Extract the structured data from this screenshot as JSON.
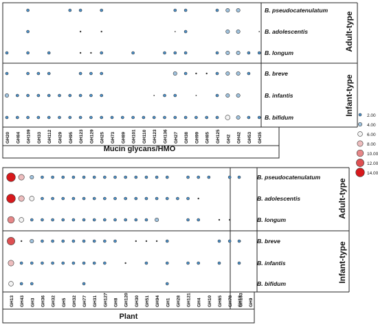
{
  "chart_data": [
    {
      "type": "bubble",
      "xlabel": "Mucin glycans/HMO",
      "categories": [
        "GH20",
        "GH84",
        "GH109",
        "GH33",
        "GH112",
        "GH29",
        "GH95",
        "GH123",
        "GH129",
        "GH25",
        "GH73",
        "GH89",
        "GH101",
        "GH110",
        "GH123",
        "GH136",
        "GH27",
        "GH38",
        "GH99",
        "GH85",
        "GH125",
        "GH2",
        "GH42",
        "GH53",
        "GH35"
      ],
      "groups": [
        {
          "label": "Adult-type",
          "rows": [
            {
              "name": "B. pseudocatenulatum",
              "values": [
                0,
                0,
                2,
                0,
                0,
                0,
                2,
                2,
                0,
                2,
                0,
                0,
                0,
                0,
                0,
                0,
                2,
                2,
                0,
                0,
                2,
                4,
                4,
                0,
                0
              ]
            },
            {
              "name": "B. adolescentis",
              "values": [
                0,
                0,
                2,
                0,
                0,
                0,
                0,
                1,
                0,
                1,
                0,
                0,
                0,
                0,
                0,
                0,
                0.5,
                2,
                0,
                0,
                0,
                4,
                4,
                0,
                0.5
              ]
            },
            {
              "name": "B. longum",
              "values": [
                2,
                0,
                2,
                0,
                2,
                0,
                0,
                1,
                1,
                2,
                0,
                0,
                2,
                0,
                0,
                2,
                2,
                2,
                0,
                0,
                2,
                4,
                4,
                2,
                2
              ]
            }
          ]
        },
        {
          "label": "Infant-type",
          "rows": [
            {
              "name": "B. breve",
              "values": [
                2,
                0,
                2,
                2,
                2,
                0,
                0,
                2,
                2,
                2,
                0,
                0,
                0,
                0,
                0,
                0,
                4,
                2,
                1,
                1,
                2,
                4,
                4,
                2,
                0
              ]
            },
            {
              "name": "B. infantis",
              "values": [
                4,
                2,
                2,
                2,
                2,
                2,
                2,
                2,
                2,
                2,
                0,
                0,
                0,
                0,
                0.5,
                2,
                2,
                0,
                0.5,
                0,
                2,
                4,
                4,
                0,
                0
              ]
            },
            {
              "name": "B. bifidum",
              "values": [
                2,
                2,
                2,
                2,
                2,
                2,
                2,
                2,
                2,
                2,
                2,
                2,
                2,
                2,
                2,
                2,
                2,
                2,
                2,
                2,
                2,
                6,
                4,
                2,
                2
              ]
            }
          ]
        }
      ]
    },
    {
      "type": "bubble",
      "xlabel": "Plant",
      "categories": [
        "GH13",
        "GH43",
        "GH3",
        "GH36",
        "GH32",
        "GH5",
        "GH32",
        "GH77",
        "GH31",
        "GH127",
        "GH8",
        "GH120",
        "GH30",
        "GH51",
        "GH94",
        "GH1",
        "GH28",
        "GH121",
        "GH4",
        "GH10",
        "GH65",
        "GH78",
        "GH133",
        "GH18",
        "GH9"
      ],
      "groups": [
        {
          "label": "Adult-type",
          "rows": [
            {
              "name": "B. pseudocatenulatum",
              "values": [
                14,
                8,
                4,
                2,
                2,
                2,
                2,
                2,
                2,
                2,
                2,
                2,
                2,
                2,
                2,
                2,
                0,
                2,
                2,
                2,
                0,
                2,
                0,
                2,
                0
              ]
            },
            {
              "name": "B. adolescentis",
              "values": [
                14,
                8,
                6,
                2,
                2,
                2,
                2,
                2,
                2,
                2,
                2,
                2,
                2,
                2,
                2,
                2,
                2,
                2,
                1,
                0,
                0,
                0,
                0,
                0,
                0
              ]
            },
            {
              "name": "B. longum",
              "values": [
                10,
                6,
                2,
                2,
                2,
                2,
                2,
                2,
                2,
                2,
                2,
                2,
                2,
                2,
                4,
                0,
                0,
                2,
                2,
                0,
                1,
                1,
                0,
                0,
                0
              ]
            }
          ]
        },
        {
          "label": "Infant-type",
          "rows": [
            {
              "name": "B. breve",
              "values": [
                12,
                1,
                4,
                2,
                2,
                2,
                2,
                2,
                2,
                2,
                2,
                0,
                1,
                1,
                1,
                2,
                0,
                0,
                0,
                0,
                2,
                2,
                1,
                2,
                0
              ]
            },
            {
              "name": "B. infantis",
              "values": [
                8,
                2,
                2,
                2,
                2,
                2,
                2,
                2,
                2,
                2,
                0,
                1,
                0,
                2,
                0,
                2,
                0,
                2,
                2,
                0,
                2,
                0,
                0,
                2,
                0
              ]
            },
            {
              "name": "B. bifidum",
              "values": [
                6,
                2,
                2,
                0,
                0,
                0,
                0,
                2,
                0,
                0,
                0,
                0,
                0,
                0,
                0,
                2,
                0,
                0,
                0,
                0,
                0,
                0,
                0,
                0,
                0
              ]
            }
          ]
        }
      ]
    }
  ],
  "legend": {
    "entries": [
      {
        "value": 2,
        "label": "2.00"
      },
      {
        "value": 4,
        "label": "4.00"
      },
      {
        "value": 6,
        "label": "6.00"
      },
      {
        "value": 8,
        "label": "8.00"
      },
      {
        "value": 10,
        "label": "10.00"
      },
      {
        "value": 12,
        "label": "12.00"
      },
      {
        "value": 14,
        "label": "14.00"
      }
    ],
    "placement": "right",
    "colors": {
      "low": "#4a8fc8",
      "mid": "#f4f4f4",
      "high": "#d7191c"
    }
  }
}
